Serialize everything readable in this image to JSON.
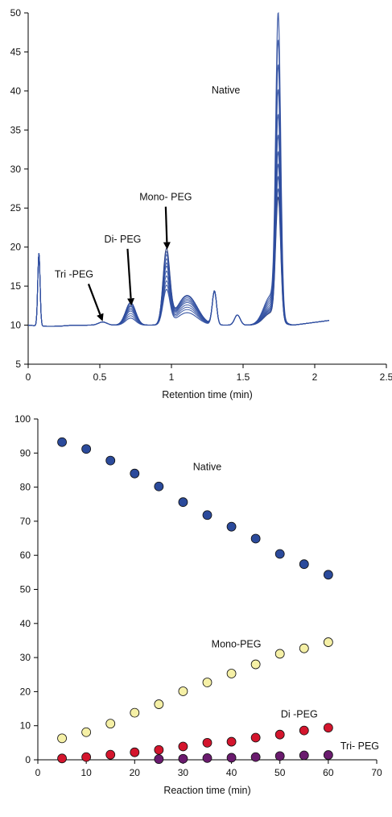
{
  "chart_data": [
    {
      "type": "line",
      "xlabel": "Retention time (min)",
      "ylabel": "",
      "xlim": [
        0,
        2.5
      ],
      "ylim": [
        5,
        50
      ],
      "xticks": [
        "0",
        "0.5",
        "1",
        "1.5",
        "2",
        "2.5"
      ],
      "yticks": [
        "5",
        "10",
        "15",
        "20",
        "25",
        "30",
        "35",
        "40",
        "45",
        "50"
      ],
      "grid": false,
      "line_color": "#2f4ea0",
      "dark_line_color": "#1c2a66",
      "annotations": [
        {
          "text": "Native",
          "x": 1.38,
          "y": 39.7
        },
        {
          "text": "Mono- PEG",
          "x": 0.96,
          "y": 26.0,
          "arrow_to": [
            0.97,
            19.7
          ]
        },
        {
          "text": "Di- PEG",
          "x": 0.66,
          "y": 20.6,
          "arrow_to": [
            0.72,
            12.5
          ]
        },
        {
          "text": "Tri -PEG",
          "x": 0.32,
          "y": 16.1,
          "arrow_to": [
            0.52,
            10.5
          ]
        }
      ],
      "peaks": {
        "baseline": 10.0,
        "injection": {
          "x": 0.075,
          "height": 9.3
        },
        "tri_peg": {
          "x": 0.52,
          "height": 0.4
        },
        "di_peg": {
          "x": 0.715,
          "heights": [
            0.9,
            1.2,
            1.5,
            1.8,
            2.0,
            2.2,
            2.4,
            2.5,
            2.7,
            2.9
          ]
        },
        "mono_peg": {
          "x": 0.965,
          "heights": [
            4.4,
            4.9,
            5.4,
            6.0,
            6.6,
            7.2,
            7.6,
            8.1,
            8.6,
            9.0,
            9.4
          ]
        },
        "mono_shoulder": {
          "x": 1.11,
          "heights": [
            1.6,
            2.0,
            2.3,
            2.6,
            2.9,
            3.1,
            3.3,
            3.5,
            3.7,
            3.8,
            3.8
          ]
        },
        "peak_1_3": {
          "x": 1.3,
          "height": 4.3
        },
        "peak_1_45": {
          "x": 1.46,
          "height": 1.3
        },
        "native": {
          "x": 1.745,
          "heights": [
            37.8,
            34.5,
            31.5,
            28.5,
            25.5,
            23.0,
            21.0,
            19.5,
            18.0,
            16.5,
            15.5
          ]
        },
        "end_x": 2.1,
        "end_y": 10.6
      }
    },
    {
      "type": "scatter",
      "xlabel": "Reaction time (min)",
      "ylabel": "",
      "xlim": [
        0,
        70
      ],
      "ylim": [
        0,
        100
      ],
      "xticks": [
        "0",
        "10",
        "20",
        "30",
        "40",
        "50",
        "60",
        "70"
      ],
      "yticks": [
        "0",
        "10",
        "20",
        "30",
        "40",
        "50",
        "60",
        "70",
        "80",
        "90",
        "100"
      ],
      "grid": false,
      "series": [
        {
          "name": "Native",
          "color": "#2b4a9b",
          "x": [
            5,
            10,
            15,
            20,
            25,
            30,
            35,
            40,
            45,
            50,
            55,
            60
          ],
          "values": [
            93.2,
            91.2,
            87.8,
            84.0,
            80.2,
            75.6,
            71.8,
            68.4,
            64.9,
            60.4,
            57.4,
            54.3
          ],
          "label_pos": [
            35,
            85
          ]
        },
        {
          "name": "Mono-PEG",
          "color": "#f5f0a6",
          "x": [
            5,
            10,
            15,
            20,
            25,
            30,
            35,
            40,
            45,
            50,
            55,
            60
          ],
          "values": [
            6.3,
            8.1,
            10.6,
            13.8,
            16.3,
            20.1,
            22.7,
            25.3,
            28.0,
            31.1,
            32.7,
            34.5
          ],
          "label_pos": [
            41,
            33
          ]
        },
        {
          "name": "Di -PEG",
          "color": "#d4152d",
          "x": [
            5,
            10,
            15,
            20,
            25,
            30,
            35,
            40,
            45,
            50,
            55,
            60
          ],
          "values": [
            0.4,
            0.8,
            1.5,
            2.2,
            2.9,
            3.9,
            5.0,
            5.3,
            6.5,
            7.4,
            8.6,
            9.4
          ],
          "label_pos": [
            54,
            12.4
          ]
        },
        {
          "name": "Tri- PEG",
          "color": "#6a1b6e",
          "x": [
            25,
            30,
            35,
            40,
            45,
            50,
            55,
            60
          ],
          "values": [
            0.2,
            0.3,
            0.5,
            0.6,
            0.8,
            1.1,
            1.3,
            1.4
          ],
          "label_pos": [
            66.5,
            3.1
          ]
        }
      ]
    }
  ]
}
